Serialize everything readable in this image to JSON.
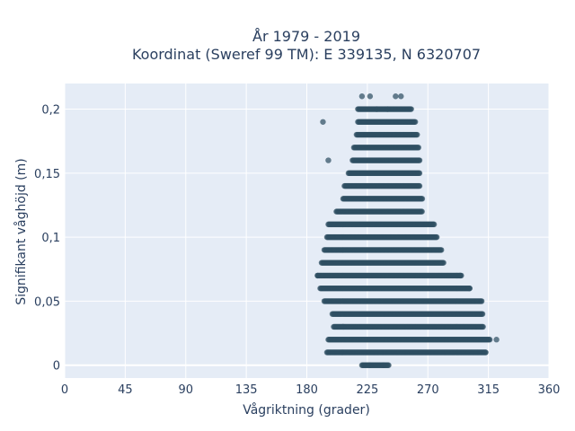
{
  "chart_data": {
    "type": "scatter",
    "title_lines": [
      "År 1979 - 2019",
      "Koordinat (Sweref 99 TM): E 339135, N 6320707"
    ],
    "xlabel": "Vågriktning (grader)",
    "ylabel": "Signifikant våghöjd (m)",
    "xlim": [
      0,
      360
    ],
    "ylim": [
      -0.01,
      0.22
    ],
    "x_ticks": [
      0,
      45,
      90,
      135,
      180,
      225,
      270,
      315,
      360
    ],
    "x_tick_labels": [
      "0",
      "45",
      "90",
      "135",
      "180",
      "225",
      "270",
      "315",
      "360"
    ],
    "y_ticks": [
      0,
      0.05,
      0.1,
      0.15,
      0.2
    ],
    "y_tick_labels": [
      "0",
      "0,05",
      "0,1",
      "0,15",
      "0,2"
    ],
    "grid": true,
    "marker_color": "#2f4f63",
    "bands": [
      {
        "y": 0.0,
        "x_min": 221,
        "x_max": 241
      },
      {
        "y": 0.01,
        "x_min": 195,
        "x_max": 313
      },
      {
        "y": 0.02,
        "x_min": 196,
        "x_max": 316
      },
      {
        "y": 0.03,
        "x_min": 200,
        "x_max": 311
      },
      {
        "y": 0.04,
        "x_min": 199,
        "x_max": 311
      },
      {
        "y": 0.05,
        "x_min": 193,
        "x_max": 310
      },
      {
        "y": 0.06,
        "x_min": 190,
        "x_max": 301
      },
      {
        "y": 0.07,
        "x_min": 188,
        "x_max": 295
      },
      {
        "y": 0.08,
        "x_min": 191,
        "x_max": 282
      },
      {
        "y": 0.09,
        "x_min": 193,
        "x_max": 280
      },
      {
        "y": 0.1,
        "x_min": 195,
        "x_max": 277
      },
      {
        "y": 0.11,
        "x_min": 196,
        "x_max": 275
      },
      {
        "y": 0.12,
        "x_min": 202,
        "x_max": 266
      },
      {
        "y": 0.13,
        "x_min": 207,
        "x_max": 266
      },
      {
        "y": 0.14,
        "x_min": 208,
        "x_max": 264
      },
      {
        "y": 0.15,
        "x_min": 211,
        "x_max": 264
      },
      {
        "y": 0.16,
        "x_min": 214,
        "x_max": 264
      },
      {
        "y": 0.17,
        "x_min": 215,
        "x_max": 263
      },
      {
        "y": 0.18,
        "x_min": 217,
        "x_max": 262
      },
      {
        "y": 0.19,
        "x_min": 218,
        "x_max": 261
      },
      {
        "y": 0.2,
        "x_min": 218,
        "x_max": 258
      }
    ],
    "points": [
      [
        221,
        0.21
      ],
      [
        227,
        0.21
      ],
      [
        246,
        0.21
      ],
      [
        250,
        0.21
      ],
      [
        232,
        0.2
      ],
      [
        240,
        0.2
      ],
      [
        192,
        0.19
      ],
      [
        196,
        0.16
      ],
      [
        188,
        0.07
      ],
      [
        207,
        0.03
      ],
      [
        237,
        0.0
      ],
      [
        227,
        0.0
      ],
      [
        321,
        0.02
      ],
      [
        313,
        0.01
      ],
      [
        294,
        0.07
      ],
      [
        301,
        0.06
      ]
    ]
  }
}
